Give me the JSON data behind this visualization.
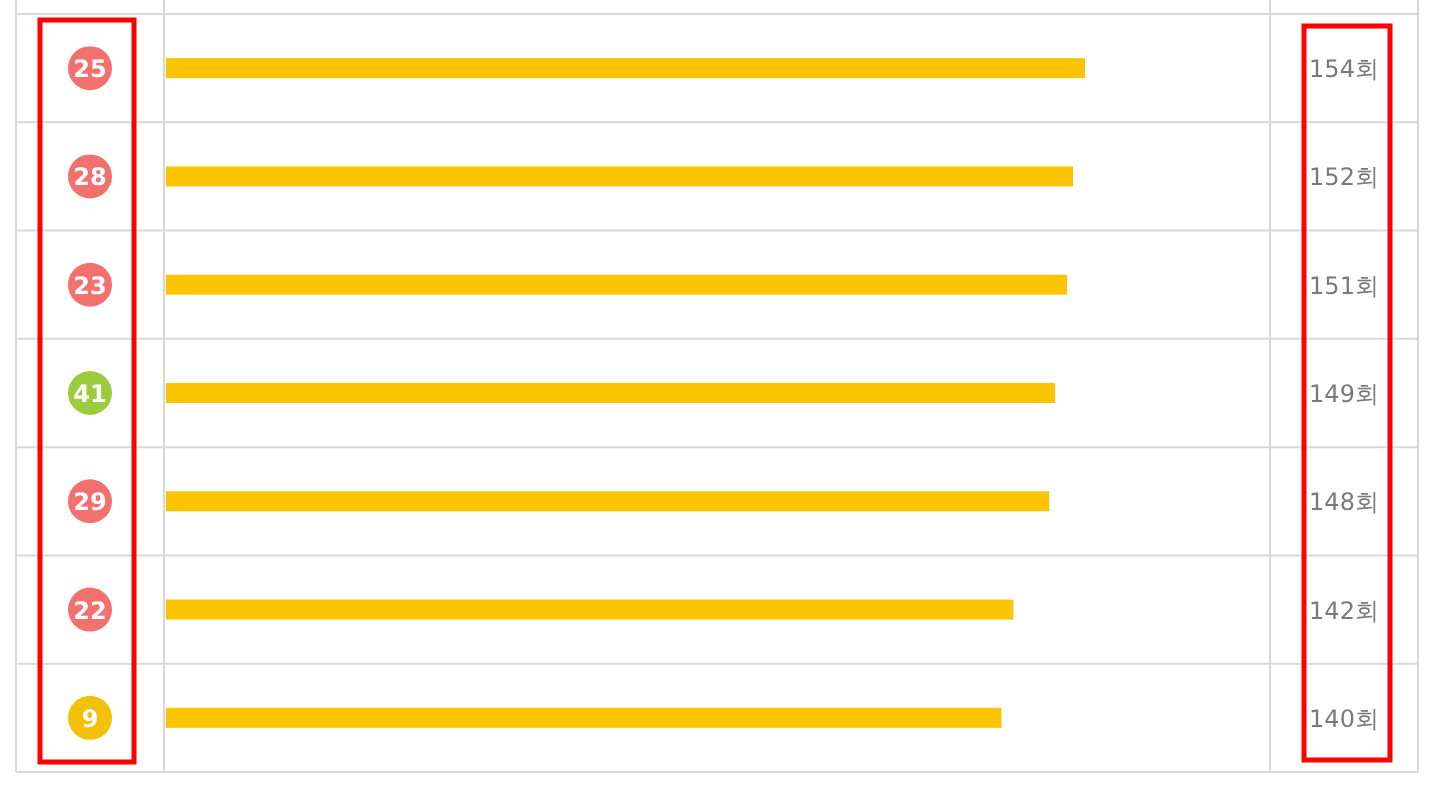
{
  "chart_data": {
    "type": "bar",
    "orientation": "horizontal",
    "categories": [
      "25",
      "28",
      "23",
      "41",
      "29",
      "22",
      "9"
    ],
    "values": [
      154,
      152,
      151,
      149,
      148,
      142,
      140
    ],
    "value_labels": [
      "154회",
      "152회",
      "151회",
      "149회",
      "148회",
      "142회",
      "140회"
    ],
    "color": "#fac400",
    "xlim": [
      0,
      185
    ],
    "tick_labels": "y"
  }
}
